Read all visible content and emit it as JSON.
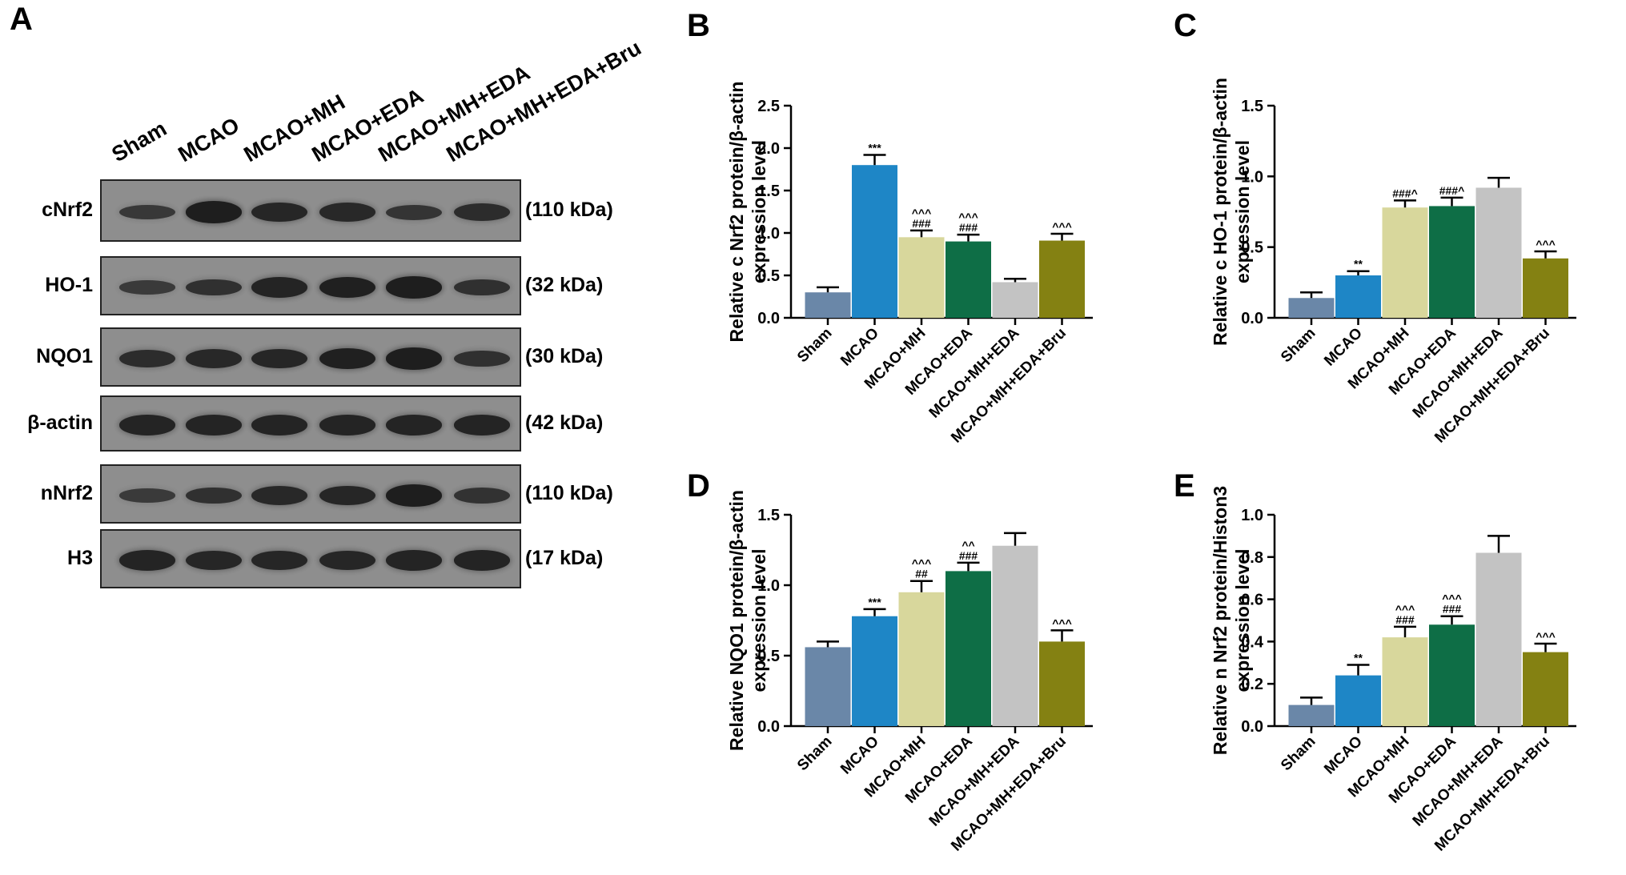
{
  "panel_A": {
    "letter": "A",
    "lanes": [
      "Sham",
      "MCAO",
      "MCAO+MH",
      "MCAO+EDA",
      "MCAO+MH+EDA",
      "MCAO+MH+EDA+Bru"
    ],
    "rows": [
      {
        "label": "cNrf2",
        "kda": "(110 kDa)",
        "intensity": [
          0.45,
          0.95,
          0.8,
          0.75,
          0.5,
          0.7
        ]
      },
      {
        "label": "HO-1",
        "kda": "(32 kDa)",
        "intensity": [
          0.4,
          0.6,
          0.85,
          0.9,
          0.95,
          0.6
        ]
      },
      {
        "label": "NQO1",
        "kda": "(30 kDa)",
        "intensity": [
          0.7,
          0.75,
          0.8,
          0.9,
          0.95,
          0.6
        ]
      },
      {
        "label": "β-actin",
        "kda": "(42 kDa)",
        "intensity": [
          0.85,
          0.85,
          0.85,
          0.85,
          0.85,
          0.85
        ]
      },
      {
        "label": "nNrf2",
        "kda": "(110 kDa)",
        "intensity": [
          0.4,
          0.6,
          0.75,
          0.8,
          0.95,
          0.55
        ]
      },
      {
        "label": "H3",
        "kda": "(17 kDa)",
        "intensity": [
          0.85,
          0.8,
          0.8,
          0.8,
          0.85,
          0.85
        ]
      }
    ]
  },
  "chart_data": [
    {
      "panel": "B",
      "type": "bar",
      "ylabel_lines": [
        "Relative c Nrf2 protein/β-actin",
        "expression level"
      ],
      "categories": [
        "Sham",
        "MCAO",
        "MCAO+MH",
        "MCAO+EDA",
        "MCAO+MH+EDA",
        "MCAO+MH+EDA+Bru"
      ],
      "values": [
        0.3,
        1.8,
        0.95,
        0.9,
        0.42,
        0.91
      ],
      "errors": [
        0.06,
        0.12,
        0.08,
        0.08,
        0.04,
        0.08
      ],
      "annotations": [
        [],
        [
          "***"
        ],
        [
          "###",
          "^^^"
        ],
        [
          "###",
          "^^^"
        ],
        [],
        [
          "^^^"
        ]
      ],
      "ylim": [
        0,
        2.5
      ],
      "yticks": [
        "0.0",
        "0.5",
        "1.0",
        "1.5",
        "2.0",
        "2.5"
      ]
    },
    {
      "panel": "C",
      "type": "bar",
      "ylabel_lines": [
        "Relative c HO-1 protein/β-actin",
        "expression level"
      ],
      "categories": [
        "Sham",
        "MCAO",
        "MCAO+MH",
        "MCAO+EDA",
        "MCAO+MH+EDA",
        "MCAO+MH+EDA+Bru"
      ],
      "values": [
        0.14,
        0.3,
        0.78,
        0.79,
        0.92,
        0.42
      ],
      "errors": [
        0.04,
        0.03,
        0.05,
        0.06,
        0.07,
        0.05
      ],
      "annotations": [
        [],
        [
          "**"
        ],
        [
          "###^"
        ],
        [
          "###^"
        ],
        [],
        [
          "^^^"
        ]
      ],
      "ylim": [
        0,
        1.5
      ],
      "yticks": [
        "0.0",
        "0.5",
        "1.0",
        "1.5"
      ]
    },
    {
      "panel": "D",
      "type": "bar",
      "ylabel_lines": [
        "Relative NQO1 protein/β-actin",
        "expression level"
      ],
      "categories": [
        "Sham",
        "MCAO",
        "MCAO+MH",
        "MCAO+EDA",
        "MCAO+MH+EDA",
        "MCAO+MH+EDA+Bru"
      ],
      "values": [
        0.56,
        0.78,
        0.95,
        1.1,
        1.28,
        0.6
      ],
      "errors": [
        0.04,
        0.05,
        0.08,
        0.06,
        0.09,
        0.08
      ],
      "annotations": [
        [],
        [
          "***"
        ],
        [
          "##",
          "^^^"
        ],
        [
          "###",
          "^^"
        ],
        [],
        [
          "^^^"
        ]
      ],
      "ylim": [
        0,
        1.5
      ],
      "yticks": [
        "0.0",
        "0.5",
        "1.0",
        "1.5"
      ]
    },
    {
      "panel": "E",
      "type": "bar",
      "ylabel_lines": [
        "Relative n Nrf2 protein/Histon3",
        "expression level"
      ],
      "categories": [
        "Sham",
        "MCAO",
        "MCAO+MH",
        "MCAO+EDA",
        "MCAO+MH+EDA",
        "MCAO+MH+EDA+Bru"
      ],
      "values": [
        0.1,
        0.24,
        0.42,
        0.48,
        0.82,
        0.35
      ],
      "errors": [
        0.035,
        0.05,
        0.05,
        0.04,
        0.08,
        0.04
      ],
      "annotations": [
        [],
        [
          "**"
        ],
        [
          "###",
          "^^^"
        ],
        [
          "###",
          "^^^"
        ],
        [],
        [
          "^^^"
        ]
      ],
      "ylim": [
        0,
        1.0
      ],
      "yticks": [
        "0.0",
        "0.2",
        "0.4",
        "0.6",
        "0.8",
        "1.0"
      ]
    }
  ],
  "colors": {
    "bars": [
      "#6a87a8",
      "#1e86c6",
      "#d8d79c",
      "#0e6e46",
      "#c3c3c3",
      "#848112"
    ],
    "blot_background": "#8e8e8e",
    "band": "#1c1c1c"
  }
}
